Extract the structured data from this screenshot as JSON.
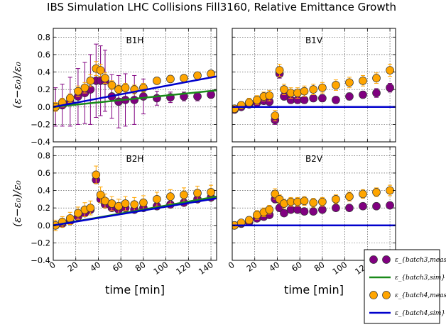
{
  "chart_data": {
    "type": "scatter",
    "title": "IBS Simulation LHC Collisions Fill3160, Relative Emittance Growth",
    "xlabel": "time [min]",
    "ylabel": "(ε−ε₀)/ε₀",
    "xlim": [
      0,
      145
    ],
    "ylim": [
      -0.4,
      0.9
    ],
    "x_ticks": [
      0,
      20,
      40,
      60,
      80,
      100,
      120,
      140
    ],
    "y_ticks": [
      -0.4,
      -0.2,
      0.0,
      0.2,
      0.4,
      0.6,
      0.8
    ],
    "y_tick_labels": [
      "−0.4",
      "−0.2",
      "0.0",
      "0.2",
      "0.4",
      "0.6",
      "0.8"
    ],
    "grid": true,
    "legend_position": "bottom-right",
    "colors": {
      "batch3_meas": "#800080",
      "batch3_sim": "#1a8a1a",
      "batch4_meas": "#ffa500",
      "batch4_sim": "#0000cc"
    },
    "legend": [
      {
        "key": "batch3_meas",
        "label": "ε_{batch3,meas}",
        "kind": "markers"
      },
      {
        "key": "batch3_sim",
        "label": "ε_{batch3,sim}",
        "kind": "line"
      },
      {
        "key": "batch4_meas",
        "label": "ε_{batch4,meas}",
        "kind": "markers"
      },
      {
        "key": "batch4_sim",
        "label": "ε_{batch4,sim}",
        "kind": "line"
      }
    ],
    "panels": [
      {
        "label": "B1H",
        "series": [
          {
            "key": "batch3_meas",
            "x": [
              2,
              8,
              15,
              22,
              28,
              33,
              38,
              42,
              46,
              52,
              58,
              64,
              72,
              80,
              92,
              104,
              116,
              128,
              140
            ],
            "y": [
              0.0,
              0.02,
              0.06,
              0.12,
              0.16,
              0.2,
              0.3,
              0.3,
              0.3,
              0.12,
              0.06,
              0.08,
              0.08,
              0.12,
              0.1,
              0.11,
              0.12,
              0.12,
              0.14
            ],
            "err": [
              0.22,
              0.24,
              0.28,
              0.32,
              0.35,
              0.4,
              0.42,
              0.4,
              0.35,
              0.25,
              0.3,
              0.3,
              0.28,
              0.2,
              0.08,
              0.06,
              0.05,
              0.05,
              0.04
            ]
          },
          {
            "key": "batch4_meas",
            "x": [
              2,
              8,
              15,
              22,
              28,
              33,
              38,
              42,
              46,
              52,
              58,
              64,
              72,
              80,
              92,
              104,
              116,
              128,
              140
            ],
            "y": [
              0.0,
              0.05,
              0.1,
              0.18,
              0.22,
              0.3,
              0.44,
              0.42,
              0.33,
              0.25,
              0.2,
              0.22,
              0.2,
              0.22,
              0.3,
              0.32,
              0.33,
              0.36,
              0.38
            ],
            "err": [
              0.05,
              0.05,
              0.05,
              0.06,
              0.06,
              0.07,
              0.08,
              0.07,
              0.06,
              0.05,
              0.05,
              0.05,
              0.05,
              0.05,
              0.04,
              0.04,
              0.04,
              0.04,
              0.04
            ]
          },
          {
            "key": "batch3_sim",
            "x": [
              0,
              145
            ],
            "y": [
              0.0,
              0.19
            ]
          },
          {
            "key": "batch4_sim",
            "x": [
              0,
              145
            ],
            "y": [
              0.0,
              0.35
            ]
          }
        ]
      },
      {
        "label": "B1V",
        "series": [
          {
            "key": "batch3_meas",
            "x": [
              2,
              8,
              15,
              22,
              28,
              33,
              38,
              42,
              46,
              52,
              58,
              64,
              72,
              80,
              92,
              104,
              116,
              128,
              140
            ],
            "y": [
              -0.03,
              0.0,
              0.03,
              0.05,
              0.07,
              0.06,
              -0.15,
              0.38,
              0.12,
              0.08,
              0.08,
              0.08,
              0.1,
              0.1,
              0.08,
              0.12,
              0.14,
              0.16,
              0.22
            ],
            "err": [
              0.03,
              0.03,
              0.03,
              0.03,
              0.04,
              0.04,
              0.05,
              0.05,
              0.04,
              0.04,
              0.04,
              0.04,
              0.04,
              0.04,
              0.04,
              0.04,
              0.04,
              0.05,
              0.05
            ]
          },
          {
            "key": "batch4_meas",
            "x": [
              2,
              8,
              15,
              22,
              28,
              33,
              38,
              42,
              46,
              52,
              58,
              64,
              72,
              80,
              92,
              104,
              116,
              128,
              140
            ],
            "y": [
              -0.02,
              0.02,
              0.05,
              0.08,
              0.12,
              0.13,
              -0.1,
              0.42,
              0.2,
              0.16,
              0.16,
              0.18,
              0.2,
              0.22,
              0.25,
              0.28,
              0.3,
              0.33,
              0.42
            ],
            "err": [
              0.04,
              0.04,
              0.05,
              0.05,
              0.05,
              0.06,
              0.06,
              0.07,
              0.06,
              0.06,
              0.06,
              0.06,
              0.06,
              0.06,
              0.06,
              0.06,
              0.06,
              0.06,
              0.07
            ]
          },
          {
            "key": "batch4_sim",
            "x": [
              0,
              145
            ],
            "y": [
              0.0,
              0.0
            ]
          }
        ]
      },
      {
        "label": "B2H",
        "series": [
          {
            "key": "batch3_meas",
            "x": [
              2,
              8,
              15,
              22,
              28,
              33,
              38,
              42,
              46,
              52,
              58,
              64,
              72,
              80,
              92,
              104,
              116,
              128,
              140
            ],
            "y": [
              0.0,
              0.02,
              0.05,
              0.1,
              0.14,
              0.18,
              0.52,
              0.3,
              0.24,
              0.2,
              0.18,
              0.2,
              0.18,
              0.2,
              0.22,
              0.24,
              0.26,
              0.3,
              0.32
            ],
            "err": [
              0.02,
              0.02,
              0.02,
              0.03,
              0.03,
              0.03,
              0.04,
              0.03,
              0.03,
              0.03,
              0.03,
              0.03,
              0.03,
              0.03,
              0.03,
              0.03,
              0.03,
              0.03,
              0.03
            ]
          },
          {
            "key": "batch4_meas",
            "x": [
              2,
              8,
              15,
              22,
              28,
              33,
              38,
              42,
              46,
              52,
              58,
              64,
              72,
              80,
              92,
              104,
              116,
              128,
              140
            ],
            "y": [
              0.0,
              0.04,
              0.08,
              0.14,
              0.18,
              0.2,
              0.58,
              0.35,
              0.28,
              0.25,
              0.22,
              0.25,
              0.24,
              0.26,
              0.3,
              0.33,
              0.35,
              0.37,
              0.38
            ],
            "err": [
              0.06,
              0.06,
              0.07,
              0.07,
              0.08,
              0.08,
              0.1,
              0.09,
              0.08,
              0.08,
              0.08,
              0.08,
              0.08,
              0.08,
              0.08,
              0.08,
              0.08,
              0.08,
              0.08
            ]
          },
          {
            "key": "batch3_sim",
            "x": [
              0,
              145
            ],
            "y": [
              0.0,
              0.33
            ]
          },
          {
            "key": "batch4_sim",
            "x": [
              0,
              145
            ],
            "y": [
              0.0,
              0.31
            ]
          }
        ]
      },
      {
        "label": "B2V",
        "series": [
          {
            "key": "batch3_meas",
            "x": [
              2,
              8,
              15,
              22,
              28,
              33,
              38,
              42,
              46,
              52,
              58,
              64,
              72,
              80,
              92,
              104,
              116,
              128,
              140
            ],
            "y": [
              0.0,
              0.02,
              0.04,
              0.08,
              0.1,
              0.12,
              0.3,
              0.2,
              0.14,
              0.18,
              0.18,
              0.16,
              0.16,
              0.18,
              0.2,
              0.2,
              0.22,
              0.22,
              0.23
            ],
            "err": [
              0.02,
              0.02,
              0.02,
              0.03,
              0.03,
              0.03,
              0.04,
              0.03,
              0.03,
              0.03,
              0.03,
              0.03,
              0.03,
              0.03,
              0.03,
              0.03,
              0.03,
              0.03,
              0.03
            ]
          },
          {
            "key": "batch4_meas",
            "x": [
              2,
              8,
              15,
              22,
              28,
              33,
              38,
              42,
              46,
              52,
              58,
              64,
              72,
              80,
              92,
              104,
              116,
              128,
              140
            ],
            "y": [
              0.0,
              0.03,
              0.06,
              0.12,
              0.15,
              0.18,
              0.36,
              0.3,
              0.25,
              0.27,
              0.27,
              0.28,
              0.26,
              0.27,
              0.3,
              0.33,
              0.36,
              0.38,
              0.4
            ],
            "err": [
              0.03,
              0.03,
              0.04,
              0.05,
              0.05,
              0.05,
              0.06,
              0.05,
              0.05,
              0.05,
              0.05,
              0.05,
              0.05,
              0.05,
              0.05,
              0.05,
              0.05,
              0.05,
              0.06
            ]
          },
          {
            "key": "batch4_sim",
            "x": [
              0,
              145
            ],
            "y": [
              0.0,
              0.0
            ]
          }
        ]
      }
    ]
  }
}
